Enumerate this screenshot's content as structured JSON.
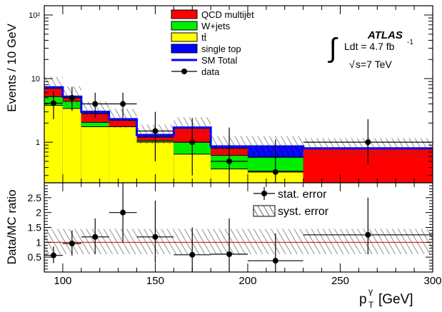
{
  "chart_data": {
    "type": "histogram",
    "x_range": [
      90,
      300
    ],
    "bins": [
      {
        "lo": 90,
        "hi": 100,
        "ttbar": 3.8,
        "wjets": 5.2,
        "qcd": 7.0,
        "stack": 7.3
      },
      {
        "lo": 100,
        "hi": 110,
        "ttbar": 3.4,
        "wjets": 4.4,
        "qcd": 5.0,
        "stack": 5.2
      },
      {
        "lo": 110,
        "hi": 125,
        "ttbar": 1.75,
        "wjets": 2.05,
        "qcd": 2.8,
        "stack": 3.0
      },
      {
        "lo": 125,
        "hi": 140,
        "ttbar": 1.75,
        "wjets": 1.75,
        "qcd": 2.2,
        "stack": 2.3
      },
      {
        "lo": 140,
        "hi": 160,
        "ttbar": 1.0,
        "wjets": 1.05,
        "qcd": 1.2,
        "stack": 1.3
      },
      {
        "lo": 160,
        "hi": 180,
        "ttbar": 0.65,
        "wjets": 1.0,
        "qcd": 1.65,
        "stack": 1.7
      },
      {
        "lo": 180,
        "hi": 200,
        "ttbar": 0.38,
        "wjets": 0.62,
        "qcd": 0.8,
        "stack": 0.86
      },
      {
        "lo": 200,
        "hi": 230,
        "ttbar": 0.35,
        "wjets": 0.58,
        "qcd": 0.58,
        "stack": 0.86
      },
      {
        "lo": 230,
        "hi": 300,
        "ttbar": 0.0,
        "wjets": 0.0,
        "qcd": 0.8,
        "stack": 0.8
      }
    ],
    "data_points": [
      {
        "x": 95,
        "xlo": 90,
        "xhi": 100,
        "y": 4.1,
        "ylo": 2.3,
        "yhi": 6.3
      },
      {
        "x": 105,
        "xlo": 100,
        "xhi": 110,
        "y": 5.0,
        "ylo": 3.1,
        "yhi": 7.4
      },
      {
        "x": 117.5,
        "xlo": 110,
        "xhi": 125,
        "y": 4.0,
        "ylo": 2.4,
        "yhi": 6.0
      },
      {
        "x": 132.5,
        "xlo": 125,
        "xhi": 140,
        "y": 4.0,
        "ylo": 2.4,
        "yhi": 6.0
      },
      {
        "x": 150,
        "xlo": 140,
        "xhi": 160,
        "y": 1.5,
        "ylo": 0.5,
        "yhi": 3.0
      },
      {
        "x": 170,
        "xlo": 160,
        "xhi": 180,
        "y": 1.0,
        "ylo": 0.3,
        "yhi": 2.4
      },
      {
        "x": 190,
        "xlo": 180,
        "xhi": 200,
        "y": 0.5,
        "ylo": 0.1,
        "yhi": 1.7
      },
      {
        "x": 215,
        "xlo": 200,
        "xhi": 230,
        "y": 0.34,
        "ylo": 0.1,
        "yhi": 1.1
      },
      {
        "x": 265,
        "xlo": 230,
        "xhi": 300,
        "y": 1.0,
        "ylo": 0.45,
        "yhi": 2.3
      }
    ],
    "ratio_points": [
      {
        "x": 95,
        "xlo": 90,
        "xhi": 100,
        "y": 0.56,
        "ylo": 0.3,
        "yhi": 0.86
      },
      {
        "x": 105,
        "xlo": 100,
        "xhi": 110,
        "y": 0.96,
        "ylo": 0.55,
        "yhi": 1.4
      },
      {
        "x": 117.5,
        "xlo": 110,
        "xhi": 125,
        "y": 1.18,
        "ylo": 0.6,
        "yhi": 1.8
      },
      {
        "x": 132.5,
        "xlo": 125,
        "xhi": 140,
        "y": 2.0,
        "ylo": 1.0,
        "yhi": 3.0
      },
      {
        "x": 150,
        "xlo": 140,
        "xhi": 160,
        "y": 1.18,
        "ylo": 0.3,
        "yhi": 2.4
      },
      {
        "x": 170,
        "xlo": 160,
        "xhi": 180,
        "y": 0.58,
        "ylo": 0.0,
        "yhi": 1.5
      },
      {
        "x": 190,
        "xlo": 180,
        "xhi": 200,
        "y": 0.6,
        "ylo": 0.0,
        "yhi": 1.8
      },
      {
        "x": 215,
        "xlo": 200,
        "xhi": 230,
        "y": 0.38,
        "ylo": 0.0,
        "yhi": 1.3
      },
      {
        "x": 265,
        "xlo": 230,
        "xhi": 300,
        "y": 1.25,
        "ylo": 0.6,
        "yhi": 2.5
      }
    ],
    "top_yaxis": {
      "scale": "log",
      "ticks": [
        1,
        10,
        100
      ],
      "tick_labels": [
        "1",
        "10",
        "10²"
      ],
      "ylim": [
        0.23,
        140
      ]
    },
    "ratio_yaxis": {
      "ticks": [
        0.5,
        1,
        1.5,
        2,
        2.5
      ],
      "tick_labels": [
        "0.5",
        "1",
        "1.5",
        "2",
        "2.5"
      ],
      "ylim": [
        0,
        3
      ]
    },
    "x_ticks": [
      100,
      150,
      200,
      250,
      300
    ],
    "x_tick_labels": [
      "100",
      "150",
      "200",
      "250",
      "300"
    ],
    "ylabel_top": "Events / 10 GeV",
    "ylabel_ratio": "Data/MC ratio",
    "xlabel": "p",
    "xlabel_sup": "γ",
    "xlabel_sub": "T",
    "xlabel_unit": "[GeV]",
    "legend": [
      {
        "label": "QCD multijet",
        "kind": "box",
        "color": "#ff0000"
      },
      {
        "label": "W+jets",
        "kind": "box",
        "color": "#00ee00"
      },
      {
        "label": "tt̄",
        "kind": "box",
        "color": "#ffff00"
      },
      {
        "label": "single top",
        "kind": "box",
        "color": "#0000ff"
      },
      {
        "label": "SM Total",
        "kind": "line",
        "color": "#0000ff"
      },
      {
        "label": "data",
        "kind": "marker",
        "color": "#000000"
      }
    ],
    "ratio_legend": [
      {
        "label": "stat. error",
        "kind": "marker"
      },
      {
        "label": "syst. error",
        "kind": "hatch"
      }
    ],
    "atlas_label": "ATLAS",
    "lumi_text": "Ldt = 4.7 fb",
    "lumi_sup": "-1",
    "energy_text": "s=7 TeV",
    "colors": {
      "qcd": "#ff0000",
      "wjets": "#00ee00",
      "ttbar": "#ffff00",
      "singletop": "#0000ff",
      "total": "#0000ff",
      "ratio_line": "#cc0000"
    }
  }
}
